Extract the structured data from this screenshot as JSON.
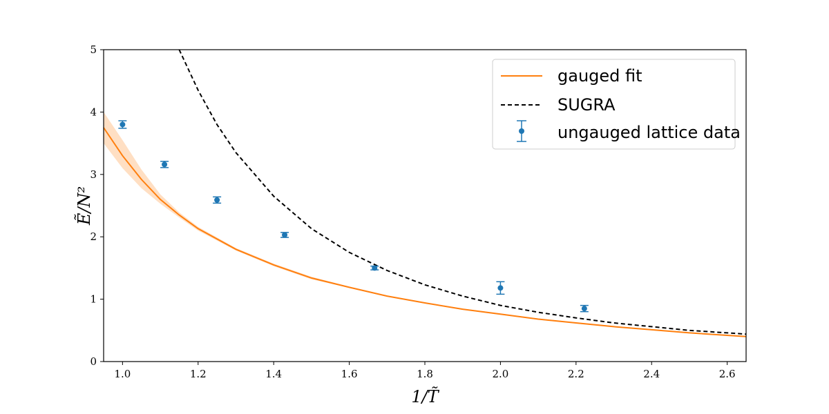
{
  "chart_data": {
    "type": "line",
    "xlabel": "1/T̃",
    "ylabel": "Ẽ/N²",
    "xlim": [
      0.95,
      2.65
    ],
    "ylim": [
      0,
      5
    ],
    "xticks": [
      1.0,
      1.2,
      1.4,
      1.6,
      1.8,
      2.0,
      2.2,
      2.4,
      2.6
    ],
    "xtick_labels": [
      "1.0",
      "1.2",
      "1.4",
      "1.6",
      "1.8",
      "2.0",
      "2.2",
      "2.4",
      "2.6"
    ],
    "yticks": [
      0,
      1,
      2,
      3,
      4,
      5
    ],
    "ytick_labels": [
      "0",
      "1",
      "2",
      "3",
      "4",
      "5"
    ],
    "grid": false,
    "legend_position": "top-right",
    "series": [
      {
        "name": "gauged fit",
        "kind": "line",
        "color": "#ff7f0e",
        "x": [
          0.95,
          1.0,
          1.05,
          1.1,
          1.15,
          1.2,
          1.3,
          1.4,
          1.5,
          1.6,
          1.7,
          1.8,
          1.9,
          2.0,
          2.1,
          2.2,
          2.3,
          2.4,
          2.5,
          2.6,
          2.65
        ],
        "y": [
          3.75,
          3.3,
          2.92,
          2.6,
          2.35,
          2.13,
          1.8,
          1.55,
          1.34,
          1.19,
          1.05,
          0.94,
          0.84,
          0.76,
          0.68,
          0.62,
          0.56,
          0.51,
          0.46,
          0.42,
          0.4
        ],
        "band_upper": [
          4.0,
          3.55,
          3.08,
          2.68,
          2.39,
          2.16,
          1.82,
          1.57,
          1.36,
          1.2,
          1.06,
          0.95,
          0.85,
          0.77,
          0.69,
          0.63,
          0.57,
          0.52,
          0.47,
          0.43,
          0.41
        ],
        "band_lower": [
          3.5,
          3.1,
          2.78,
          2.53,
          2.31,
          2.1,
          1.78,
          1.53,
          1.32,
          1.18,
          1.04,
          0.93,
          0.83,
          0.75,
          0.67,
          0.61,
          0.55,
          0.5,
          0.45,
          0.41,
          0.39
        ]
      },
      {
        "name": "SUGRA",
        "kind": "dashed",
        "color": "#000000",
        "x": [
          1.15,
          1.2,
          1.25,
          1.3,
          1.4,
          1.5,
          1.6,
          1.7,
          1.8,
          1.9,
          2.0,
          2.1,
          2.2,
          2.3,
          2.4,
          2.5,
          2.6,
          2.65
        ],
        "y": [
          5.0,
          4.35,
          3.8,
          3.35,
          2.65,
          2.13,
          1.75,
          1.46,
          1.23,
          1.05,
          0.9,
          0.79,
          0.7,
          0.62,
          0.56,
          0.5,
          0.46,
          0.44
        ]
      },
      {
        "name": "ungauged lattice data",
        "kind": "errorbar",
        "color": "#1f77b4",
        "x": [
          1.0,
          1.111,
          1.25,
          1.429,
          1.667,
          2.0,
          2.222
        ],
        "y": [
          3.8,
          3.16,
          2.59,
          2.03,
          1.5,
          1.18,
          0.85
        ],
        "yerr": [
          0.06,
          0.05,
          0.05,
          0.04,
          0.03,
          0.1,
          0.05
        ]
      }
    ]
  }
}
